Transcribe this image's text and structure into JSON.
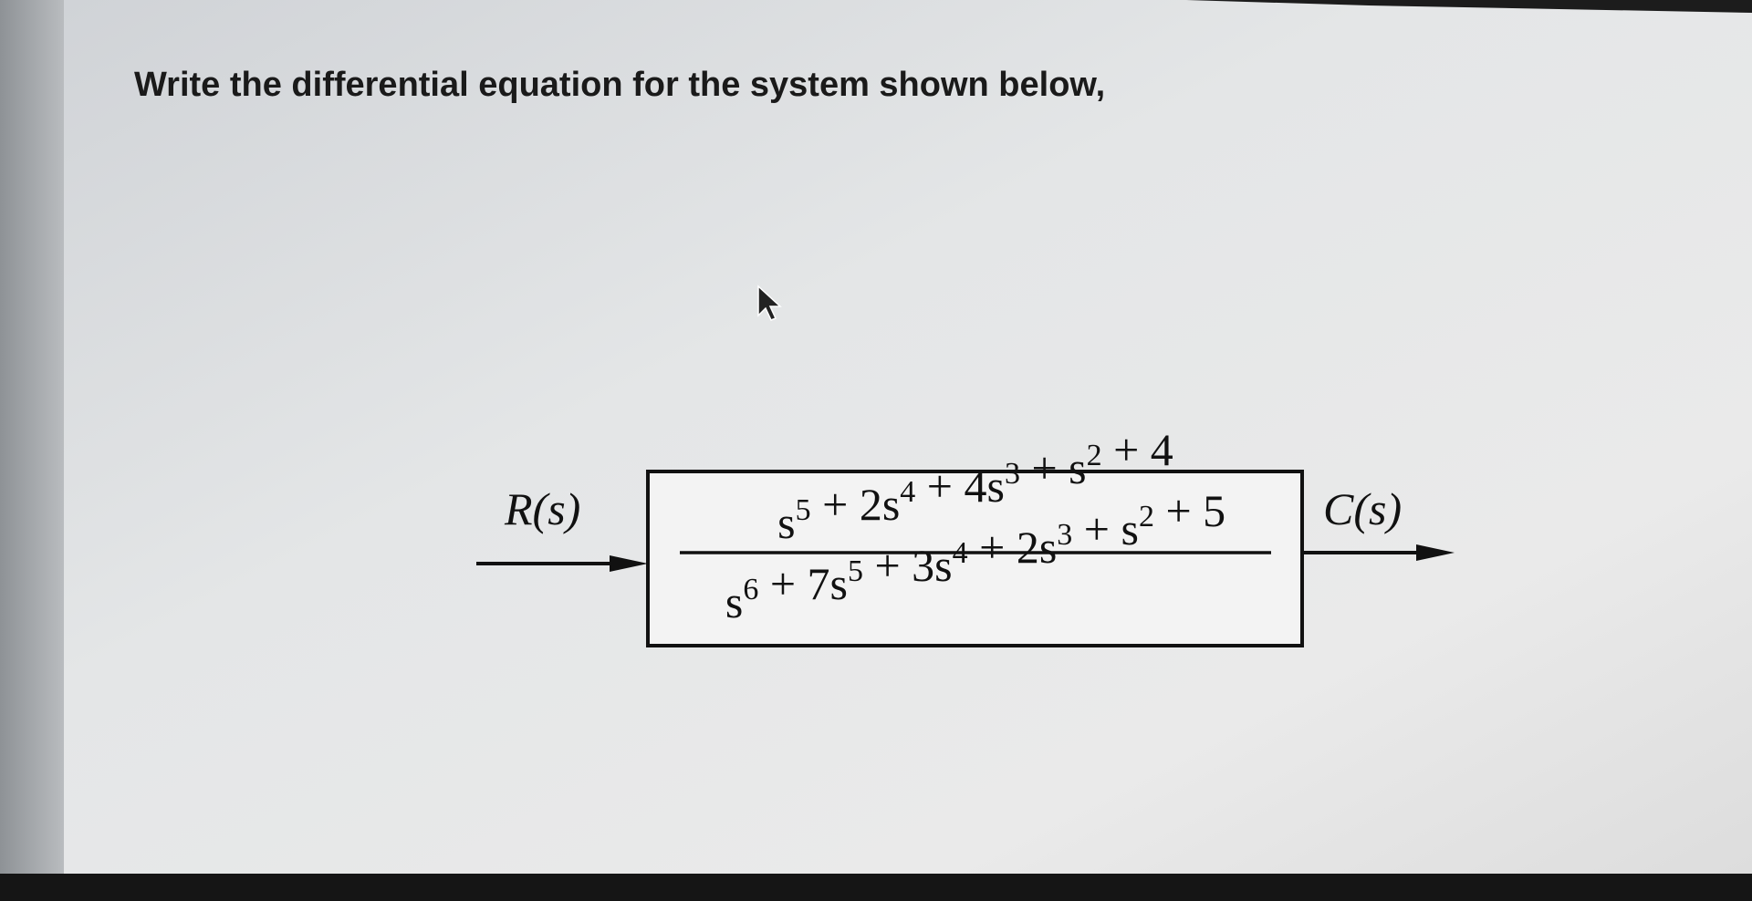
{
  "question": "Write the differential equation for the system shown below,",
  "diagram": {
    "input": {
      "label": "R(s)"
    },
    "output": {
      "label": "C(s)"
    },
    "block": {
      "numerator": [
        {
          "base": "s",
          "sup": "5"
        },
        {
          "base": " + 2s",
          "sup": "4"
        },
        {
          "base": " + 4s",
          "sup": "3"
        },
        {
          "base": " + s",
          "sup": "2"
        },
        {
          "base": " + 4"
        }
      ],
      "denominator": [
        {
          "base": "s",
          "sup": "6"
        },
        {
          "base": " + 7s",
          "sup": "5"
        },
        {
          "base": " + 3s",
          "sup": "4"
        },
        {
          "base": " + 2s",
          "sup": "3"
        },
        {
          "base": " + s",
          "sup": "2"
        },
        {
          "base": " + 5"
        }
      ]
    }
  }
}
